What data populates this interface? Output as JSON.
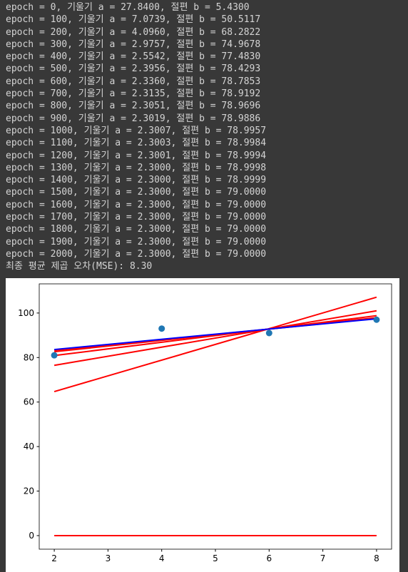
{
  "console": {
    "lines": [
      "epoch = 0, 기울기 a = 27.8400, 절편 b = 5.4300",
      "epoch = 100, 기울기 a = 7.0739, 절편 b = 50.5117",
      "epoch = 200, 기울기 a = 4.0960, 절편 b = 68.2822",
      "epoch = 300, 기울기 a = 2.9757, 절편 b = 74.9678",
      "epoch = 400, 기울기 a = 2.5542, 절편 b = 77.4830",
      "epoch = 500, 기울기 a = 2.3956, 절편 b = 78.4293",
      "epoch = 600, 기울기 a = 2.3360, 절편 b = 78.7853",
      "epoch = 700, 기울기 a = 2.3135, 절편 b = 78.9192",
      "epoch = 800, 기울기 a = 2.3051, 절편 b = 78.9696",
      "epoch = 900, 기울기 a = 2.3019, 절편 b = 78.9886",
      "epoch = 1000, 기울기 a = 2.3007, 절편 b = 78.9957",
      "epoch = 1100, 기울기 a = 2.3003, 절편 b = 78.9984",
      "epoch = 1200, 기울기 a = 2.3001, 절편 b = 78.9994",
      "epoch = 1300, 기울기 a = 2.3000, 절편 b = 78.9998",
      "epoch = 1400, 기울기 a = 2.3000, 절편 b = 78.9999",
      "epoch = 1500, 기울기 a = 2.3000, 절편 b = 79.0000",
      "epoch = 1600, 기울기 a = 2.3000, 절편 b = 79.0000",
      "epoch = 1700, 기울기 a = 2.3000, 절편 b = 79.0000",
      "epoch = 1800, 기울기 a = 2.3000, 절편 b = 79.0000",
      "epoch = 1900, 기울기 a = 2.3000, 절편 b = 79.0000",
      "epoch = 2000, 기울기 a = 2.3000, 절편 b = 79.0000",
      "최종 평균 제곱 오차(MSE): 8.30"
    ]
  },
  "chart_data": {
    "type": "scatter",
    "points": {
      "x": [
        2,
        4,
        6,
        8
      ],
      "values": [
        81,
        93,
        91,
        97
      ],
      "color": "#1f77b4"
    },
    "lines": [
      {
        "x": [
          2,
          8
        ],
        "values": [
          0,
          0
        ],
        "color": "#ff0000"
      },
      {
        "x": [
          2,
          8
        ],
        "values": [
          64.7,
          107.1
        ],
        "color": "#ff0000"
      },
      {
        "x": [
          2,
          8
        ],
        "values": [
          76.5,
          101.0
        ],
        "color": "#ff0000"
      },
      {
        "x": [
          2,
          8
        ],
        "values": [
          80.9,
          98.8
        ],
        "color": "#ff0000"
      },
      {
        "x": [
          2,
          8
        ],
        "values": [
          82.6,
          97.9
        ],
        "color": "#ff0000"
      },
      {
        "x": [
          2,
          8
        ],
        "values": [
          83.2,
          97.6
        ],
        "color": "#ff0000"
      },
      {
        "x": [
          2,
          8
        ],
        "values": [
          83.6,
          97.4
        ],
        "color": "#0000ff"
      }
    ],
    "xlim": [
      1.72,
      8.28
    ],
    "xticks": [
      2,
      3,
      4,
      5,
      6,
      7,
      8
    ],
    "ylim": [
      -6.1,
      113.1
    ],
    "yticks": [
      0,
      20,
      40,
      60,
      80,
      100
    ]
  }
}
